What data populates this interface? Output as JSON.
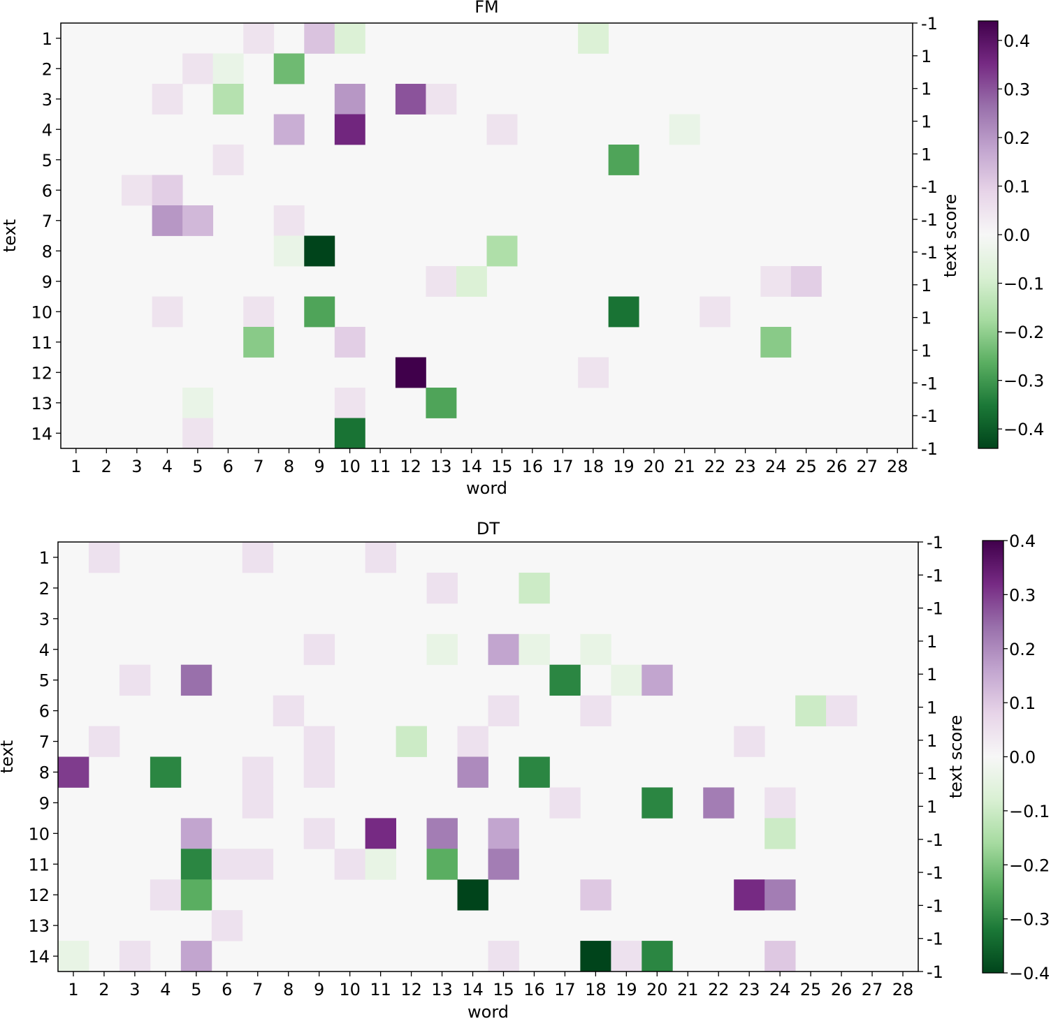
{
  "chart_data": [
    {
      "type": "heatmap",
      "title": "FM",
      "xlabel": "word",
      "ylabel": "text",
      "ylabel_right": "text score",
      "x_ticks": [
        "1",
        "2",
        "3",
        "4",
        "5",
        "6",
        "7",
        "8",
        "9",
        "10",
        "11",
        "12",
        "13",
        "14",
        "15",
        "16",
        "17",
        "18",
        "19",
        "20",
        "21",
        "22",
        "23",
        "24",
        "25",
        "26",
        "27",
        "28"
      ],
      "y_ticks": [
        "1",
        "2",
        "3",
        "4",
        "5",
        "6",
        "7",
        "8",
        "9",
        "10",
        "11",
        "12",
        "13",
        "14"
      ],
      "text_scores": [
        "-1",
        "1",
        "1",
        "1",
        "1",
        "-1",
        "-1",
        "-1",
        "1",
        "1",
        "1",
        "-1",
        "-1",
        "-1"
      ],
      "colorbar": {
        "range": [
          -0.44,
          0.44
        ],
        "ticks": [
          "0.4",
          "0.3",
          "0.2",
          "0.1",
          "0.0",
          "−0.1",
          "−0.2",
          "−0.3",
          "−0.4"
        ],
        "tick_values": [
          0.4,
          0.3,
          0.2,
          0.1,
          0.0,
          -0.1,
          -0.2,
          -0.3,
          -0.4
        ]
      },
      "colormap": "PRGn",
      "cells": [
        {
          "text": 1,
          "word": 7,
          "value": 0.05
        },
        {
          "text": 1,
          "word": 9,
          "value": 0.12
        },
        {
          "text": 1,
          "word": 10,
          "value": -0.08
        },
        {
          "text": 1,
          "word": 18,
          "value": -0.08
        },
        {
          "text": 2,
          "word": 5,
          "value": 0.05
        },
        {
          "text": 2,
          "word": 6,
          "value": -0.04
        },
        {
          "text": 2,
          "word": 8,
          "value": -0.24
        },
        {
          "text": 3,
          "word": 4,
          "value": 0.05
        },
        {
          "text": 3,
          "word": 6,
          "value": -0.15
        },
        {
          "text": 3,
          "word": 10,
          "value": 0.2
        },
        {
          "text": 3,
          "word": 12,
          "value": 0.3
        },
        {
          "text": 3,
          "word": 13,
          "value": 0.05
        },
        {
          "text": 4,
          "word": 8,
          "value": 0.16
        },
        {
          "text": 4,
          "word": 10,
          "value": 0.36
        },
        {
          "text": 4,
          "word": 15,
          "value": 0.05
        },
        {
          "text": 4,
          "word": 21,
          "value": -0.04
        },
        {
          "text": 5,
          "word": 6,
          "value": 0.05
        },
        {
          "text": 5,
          "word": 19,
          "value": -0.28
        },
        {
          "text": 6,
          "word": 3,
          "value": 0.05
        },
        {
          "text": 6,
          "word": 4,
          "value": 0.1
        },
        {
          "text": 7,
          "word": 4,
          "value": 0.2
        },
        {
          "text": 7,
          "word": 5,
          "value": 0.14
        },
        {
          "text": 7,
          "word": 8,
          "value": 0.05
        },
        {
          "text": 8,
          "word": 8,
          "value": -0.04
        },
        {
          "text": 8,
          "word": 9,
          "value": -0.44
        },
        {
          "text": 8,
          "word": 15,
          "value": -0.16
        },
        {
          "text": 9,
          "word": 13,
          "value": 0.05
        },
        {
          "text": 9,
          "word": 14,
          "value": -0.08
        },
        {
          "text": 9,
          "word": 24,
          "value": 0.05
        },
        {
          "text": 9,
          "word": 25,
          "value": 0.1
        },
        {
          "text": 10,
          "word": 4,
          "value": 0.05
        },
        {
          "text": 10,
          "word": 7,
          "value": 0.05
        },
        {
          "text": 10,
          "word": 9,
          "value": -0.28
        },
        {
          "text": 10,
          "word": 19,
          "value": -0.36
        },
        {
          "text": 10,
          "word": 22,
          "value": 0.05
        },
        {
          "text": 11,
          "word": 7,
          "value": -0.21
        },
        {
          "text": 11,
          "word": 10,
          "value": 0.1
        },
        {
          "text": 11,
          "word": 24,
          "value": -0.21
        },
        {
          "text": 12,
          "word": 12,
          "value": 0.44
        },
        {
          "text": 12,
          "word": 18,
          "value": 0.05
        },
        {
          "text": 13,
          "word": 5,
          "value": -0.04
        },
        {
          "text": 13,
          "word": 10,
          "value": 0.05
        },
        {
          "text": 13,
          "word": 13,
          "value": -0.28
        },
        {
          "text": 14,
          "word": 5,
          "value": 0.05
        },
        {
          "text": 14,
          "word": 10,
          "value": -0.36
        }
      ]
    },
    {
      "type": "heatmap",
      "title": "DT",
      "xlabel": "word",
      "ylabel": "text",
      "ylabel_right": "text score",
      "x_ticks": [
        "1",
        "2",
        "3",
        "4",
        "5",
        "6",
        "7",
        "8",
        "9",
        "10",
        "11",
        "12",
        "13",
        "14",
        "15",
        "16",
        "17",
        "18",
        "19",
        "20",
        "21",
        "22",
        "23",
        "24",
        "25",
        "26",
        "27",
        "28"
      ],
      "y_ticks": [
        "1",
        "2",
        "3",
        "4",
        "5",
        "6",
        "7",
        "8",
        "9",
        "10",
        "11",
        "12",
        "13",
        "14"
      ],
      "text_scores": [
        "-1",
        "-1",
        "-1",
        "1",
        "1",
        "1",
        "1",
        "1",
        "1",
        "-1",
        "-1",
        "-1",
        "-1",
        "-1"
      ],
      "colorbar": {
        "range": [
          -0.4,
          0.4
        ],
        "ticks": [
          "0.4",
          "0.3",
          "0.2",
          "0.1",
          "0.0",
          "−0.1",
          "−0.2",
          "−0.3",
          "−0.4"
        ],
        "tick_values": [
          0.4,
          0.3,
          0.2,
          0.1,
          0.0,
          -0.1,
          -0.2,
          -0.3,
          -0.4
        ]
      },
      "colormap": "PRGn",
      "cells": [
        {
          "text": 1,
          "word": 2,
          "value": 0.05
        },
        {
          "text": 1,
          "word": 7,
          "value": 0.05
        },
        {
          "text": 1,
          "word": 11,
          "value": 0.05
        },
        {
          "text": 2,
          "word": 13,
          "value": 0.05
        },
        {
          "text": 2,
          "word": 16,
          "value": -0.1
        },
        {
          "text": 4,
          "word": 9,
          "value": 0.05
        },
        {
          "text": 4,
          "word": 13,
          "value": -0.04
        },
        {
          "text": 4,
          "word": 15,
          "value": 0.16
        },
        {
          "text": 4,
          "word": 16,
          "value": -0.04
        },
        {
          "text": 4,
          "word": 18,
          "value": -0.04
        },
        {
          "text": 5,
          "word": 3,
          "value": 0.05
        },
        {
          "text": 5,
          "word": 5,
          "value": 0.24
        },
        {
          "text": 5,
          "word": 17,
          "value": -0.3
        },
        {
          "text": 5,
          "word": 19,
          "value": -0.04
        },
        {
          "text": 5,
          "word": 20,
          "value": 0.16
        },
        {
          "text": 6,
          "word": 8,
          "value": 0.05
        },
        {
          "text": 6,
          "word": 15,
          "value": 0.05
        },
        {
          "text": 6,
          "word": 18,
          "value": 0.05
        },
        {
          "text": 6,
          "word": 25,
          "value": -0.1
        },
        {
          "text": 6,
          "word": 26,
          "value": 0.05
        },
        {
          "text": 7,
          "word": 2,
          "value": 0.05
        },
        {
          "text": 7,
          "word": 9,
          "value": 0.05
        },
        {
          "text": 7,
          "word": 12,
          "value": -0.1
        },
        {
          "text": 7,
          "word": 14,
          "value": 0.05
        },
        {
          "text": 7,
          "word": 23,
          "value": 0.05
        },
        {
          "text": 8,
          "word": 1,
          "value": 0.3
        },
        {
          "text": 8,
          "word": 4,
          "value": -0.3
        },
        {
          "text": 8,
          "word": 7,
          "value": 0.05
        },
        {
          "text": 8,
          "word": 9,
          "value": 0.05
        },
        {
          "text": 8,
          "word": 14,
          "value": 0.2
        },
        {
          "text": 8,
          "word": 16,
          "value": -0.3
        },
        {
          "text": 9,
          "word": 7,
          "value": 0.05
        },
        {
          "text": 9,
          "word": 17,
          "value": 0.05
        },
        {
          "text": 9,
          "word": 20,
          "value": -0.3
        },
        {
          "text": 9,
          "word": 22,
          "value": 0.22
        },
        {
          "text": 9,
          "word": 24,
          "value": 0.05
        },
        {
          "text": 10,
          "word": 5,
          "value": 0.16
        },
        {
          "text": 10,
          "word": 9,
          "value": 0.05
        },
        {
          "text": 10,
          "word": 11,
          "value": 0.32
        },
        {
          "text": 10,
          "word": 13,
          "value": 0.22
        },
        {
          "text": 10,
          "word": 15,
          "value": 0.16
        },
        {
          "text": 10,
          "word": 24,
          "value": -0.1
        },
        {
          "text": 11,
          "word": 5,
          "value": -0.3
        },
        {
          "text": 11,
          "word": 6,
          "value": 0.05
        },
        {
          "text": 11,
          "word": 7,
          "value": 0.05
        },
        {
          "text": 11,
          "word": 10,
          "value": 0.05
        },
        {
          "text": 11,
          "word": 11,
          "value": -0.04
        },
        {
          "text": 11,
          "word": 13,
          "value": -0.24
        },
        {
          "text": 11,
          "word": 15,
          "value": 0.22
        },
        {
          "text": 12,
          "word": 4,
          "value": 0.05
        },
        {
          "text": 12,
          "word": 5,
          "value": -0.24
        },
        {
          "text": 12,
          "word": 14,
          "value": -0.4
        },
        {
          "text": 12,
          "word": 18,
          "value": 0.1
        },
        {
          "text": 12,
          "word": 23,
          "value": 0.32
        },
        {
          "text": 12,
          "word": 24,
          "value": 0.22
        },
        {
          "text": 13,
          "word": 6,
          "value": 0.05
        },
        {
          "text": 14,
          "word": 1,
          "value": -0.04
        },
        {
          "text": 14,
          "word": 3,
          "value": 0.05
        },
        {
          "text": 14,
          "word": 5,
          "value": 0.16
        },
        {
          "text": 14,
          "word": 15,
          "value": 0.05
        },
        {
          "text": 14,
          "word": 18,
          "value": -0.4
        },
        {
          "text": 14,
          "word": 19,
          "value": 0.05
        },
        {
          "text": 14,
          "word": 20,
          "value": -0.3
        },
        {
          "text": 14,
          "word": 24,
          "value": 0.1
        }
      ]
    }
  ]
}
